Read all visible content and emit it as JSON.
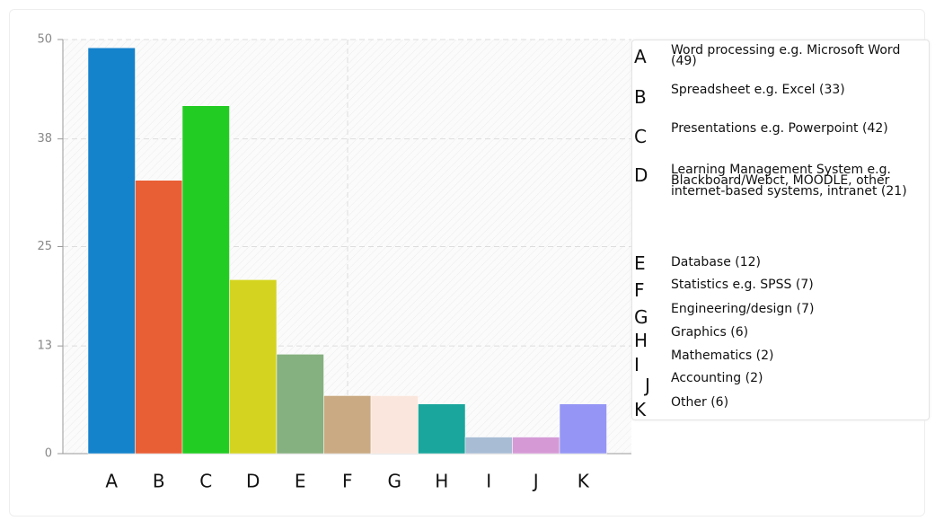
{
  "chart_data": {
    "type": "bar",
    "categories": [
      "A",
      "B",
      "C",
      "D",
      "E",
      "F",
      "G",
      "H",
      "I",
      "J",
      "K"
    ],
    "values": [
      49,
      33,
      42,
      21,
      12,
      7,
      7,
      6,
      2,
      2,
      6
    ],
    "colors": [
      "#1582cc",
      "#e85f35",
      "#22cc22",
      "#d4d420",
      "#85b07f",
      "#c9aa83",
      "#fae6dc",
      "#1aa69c",
      "#a8bcd4",
      "#d59ad6",
      "#9595f5"
    ],
    "legend_labels": [
      "Word processing e.g. Microsoft Word (49)",
      "Spreadsheet e.g. Excel (33)",
      "Presentations e.g. Powerpoint (42)",
      "Learning Management System e.g. Blackboard/Webct, MOODLE, other internet-based systems, intranet (21)",
      "Database (12)",
      "Statistics e.g. SPSS (7)",
      "Engineering/design (7)",
      "Graphics (6)",
      "Mathematics (2)",
      "Accounting (2)",
      "Other (6)"
    ],
    "ylim": [
      0,
      50
    ],
    "yticks": [
      0,
      13,
      25,
      38,
      50
    ],
    "grid": true
  }
}
